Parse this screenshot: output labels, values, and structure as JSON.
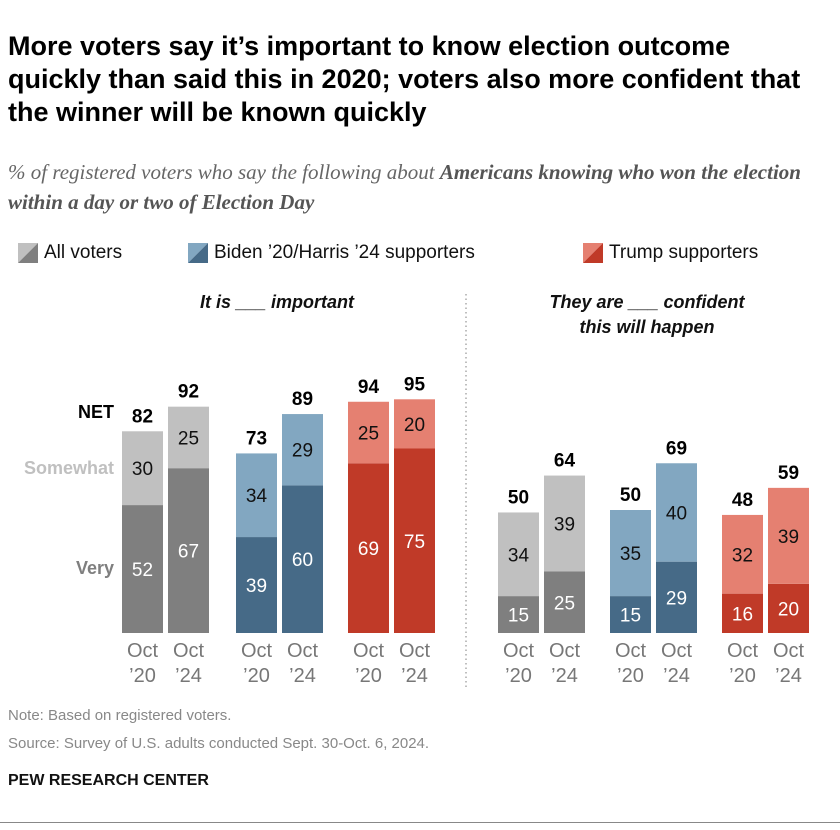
{
  "title": "More voters say it’s important to know election outcome quickly than said this in 2020; voters also more confident that the winner will be known quickly",
  "subtitle_plain": "% of registered voters who say the following about ",
  "subtitle_bold": "Americans knowing who won the election within a day or two of Election Day",
  "legend": [
    {
      "label": "All voters",
      "light": "#c0c0c0",
      "dark": "#7f7f7f"
    },
    {
      "label": "Biden ’20/Harris ’24 supporters",
      "light": "#82a7c1",
      "dark": "#466a87"
    },
    {
      "label": "Trump supporters",
      "light": "#e58071",
      "dark": "#c03a28"
    }
  ],
  "note": "Note: Based on registered voters.",
  "source": "Source: Survey of U.S. adults conducted Sept. 30-Oct. 6, 2024.",
  "brand": "PEW RESEARCH CENTER",
  "chart_data": {
    "type": "bar",
    "stacked": true,
    "row_labels": {
      "net": "NET",
      "somewhat": "Somewhat",
      "very": "Very"
    },
    "panels": [
      {
        "title_line1": "It is ___ important",
        "title_line2": "",
        "groups": [
          {
            "name": "All voters",
            "bars": [
              {
                "x": [
                  "Oct",
                  "’20"
                ],
                "very": 52,
                "somewhat": 30,
                "net": 82
              },
              {
                "x": [
                  "Oct",
                  "’24"
                ],
                "very": 67,
                "somewhat": 25,
                "net": 92
              }
            ]
          },
          {
            "name": "Biden ’20/Harris ’24 supporters",
            "bars": [
              {
                "x": [
                  "Oct",
                  "’20"
                ],
                "very": 39,
                "somewhat": 34,
                "net": 73
              },
              {
                "x": [
                  "Oct",
                  "’24"
                ],
                "very": 60,
                "somewhat": 29,
                "net": 89
              }
            ]
          },
          {
            "name": "Trump supporters",
            "bars": [
              {
                "x": [
                  "Oct",
                  "’20"
                ],
                "very": 69,
                "somewhat": 25,
                "net": 94
              },
              {
                "x": [
                  "Oct",
                  "’24"
                ],
                "very": 75,
                "somewhat": 20,
                "net": 95
              }
            ]
          }
        ]
      },
      {
        "title_line1": "They are ___ confident",
        "title_line2": "this will happen",
        "groups": [
          {
            "name": "All voters",
            "bars": [
              {
                "x": [
                  "Oct",
                  "’20"
                ],
                "very": 15,
                "somewhat": 34,
                "net": 50
              },
              {
                "x": [
                  "Oct",
                  "’24"
                ],
                "very": 25,
                "somewhat": 39,
                "net": 64
              }
            ]
          },
          {
            "name": "Biden ’20/Harris ’24 supporters",
            "bars": [
              {
                "x": [
                  "Oct",
                  "’20"
                ],
                "very": 15,
                "somewhat": 35,
                "net": 50
              },
              {
                "x": [
                  "Oct",
                  "’24"
                ],
                "very": 29,
                "somewhat": 40,
                "net": 69
              }
            ]
          },
          {
            "name": "Trump supporters",
            "bars": [
              {
                "x": [
                  "Oct",
                  "’20"
                ],
                "very": 16,
                "somewhat": 32,
                "net": 48
              },
              {
                "x": [
                  "Oct",
                  "’24"
                ],
                "very": 20,
                "somewhat": 39,
                "net": 59
              }
            ]
          }
        ]
      }
    ]
  }
}
